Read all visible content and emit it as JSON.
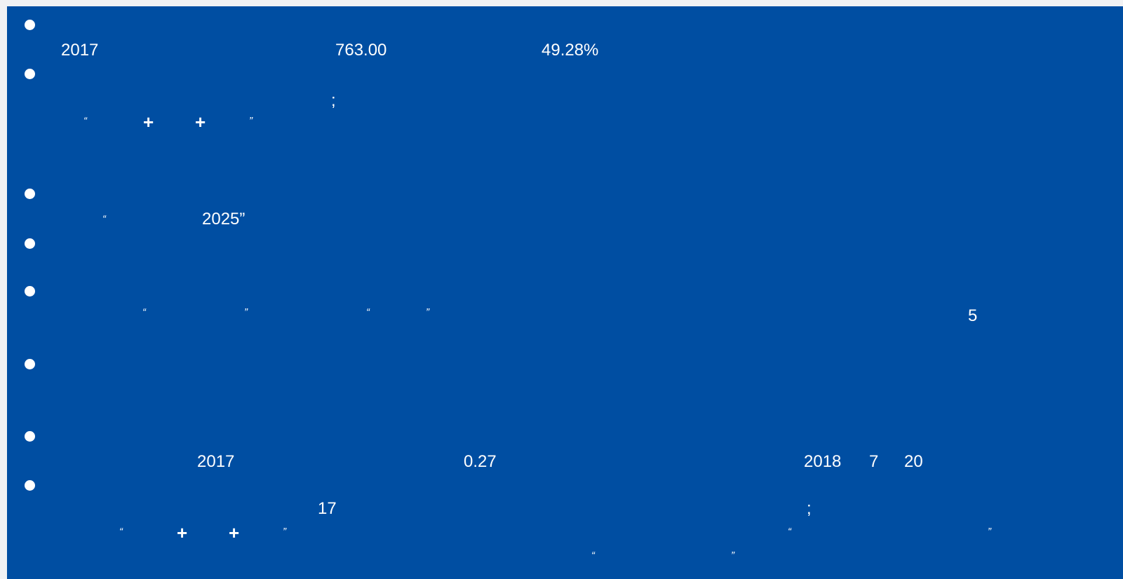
{
  "colors": {
    "background": "#004ea2",
    "text": "#ffffff",
    "frame": "#f1f2f4"
  },
  "items": [
    {
      "values": {
        "year": "2017",
        "amount": "763.00",
        "percent": "49.28%"
      }
    },
    {
      "semicolon": ";",
      "q_open": "“",
      "plus_1": "+",
      "plus_2": "+",
      "q_close": "”"
    },
    {},
    {
      "q_open": "“",
      "year_quoted": "2025”"
    },
    {},
    {
      "q1_open": "“",
      "q1_close": "”",
      "q2_open": "“",
      "q2_close": "”",
      "number": "5"
    },
    {},
    {
      "year": "2017",
      "value": "0.27",
      "date_year": "2018",
      "date_month": "7",
      "date_day": "20"
    },
    {
      "number": "17",
      "semicolon": ";",
      "q1_open": "“",
      "plus_1": "+",
      "plus_2": "+",
      "q1_close": "”",
      "q2_open": "“",
      "q2_close": "”",
      "q3_open": "“",
      "q3_close": "”"
    }
  ]
}
